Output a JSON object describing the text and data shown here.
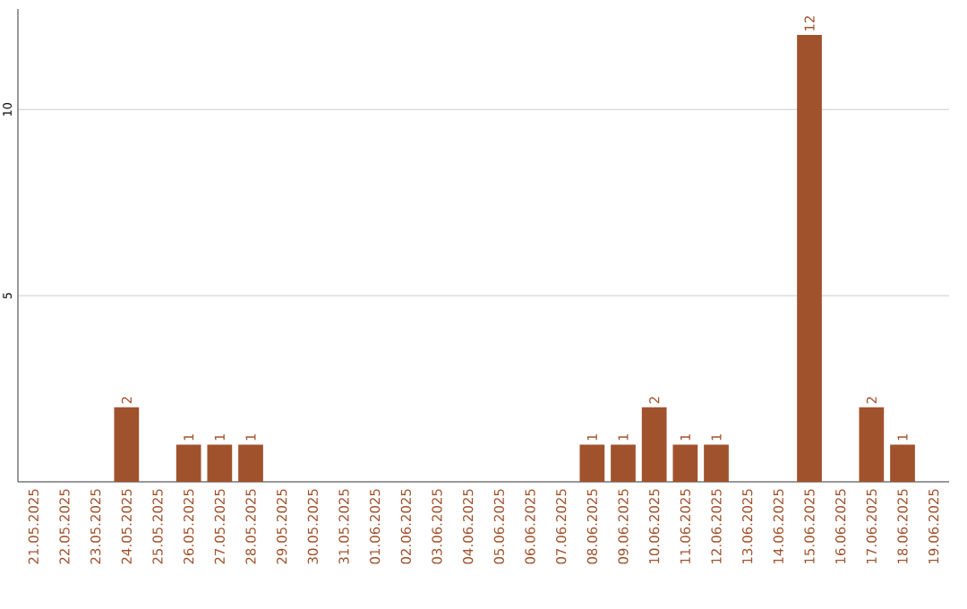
{
  "chart_data": {
    "type": "bar",
    "categories": [
      "21.05.2025",
      "22.05.2025",
      "23.05.2025",
      "24.05.2025",
      "25.05.2025",
      "26.05.2025",
      "27.05.2025",
      "28.05.2025",
      "29.05.2025",
      "30.05.2025",
      "31.05.2025",
      "01.06.2025",
      "02.06.2025",
      "03.06.2025",
      "04.06.2025",
      "05.06.2025",
      "06.06.2025",
      "07.06.2025",
      "08.06.2025",
      "09.06.2025",
      "10.06.2025",
      "11.06.2025",
      "12.06.2025",
      "13.06.2025",
      "14.06.2025",
      "15.06.2025",
      "16.06.2025",
      "17.06.2025",
      "18.06.2025",
      "19.06.2025"
    ],
    "values": [
      0,
      0,
      0,
      2,
      0,
      1,
      1,
      1,
      0,
      0,
      0,
      0,
      0,
      0,
      0,
      0,
      0,
      0,
      1,
      1,
      2,
      1,
      1,
      0,
      0,
      12,
      0,
      2,
      1,
      0
    ],
    "value_labels": [
      null,
      null,
      null,
      "2",
      null,
      "1",
      "1",
      "1",
      null,
      null,
      null,
      null,
      null,
      null,
      null,
      null,
      null,
      null,
      "1",
      "1",
      "2",
      "1",
      "1",
      null,
      null,
      "12",
      null,
      "2",
      "1",
      null
    ],
    "color": "#a0522d",
    "ylim": [
      0,
      12.7
    ],
    "yticks": [
      5,
      10
    ],
    "grid": "y"
  }
}
